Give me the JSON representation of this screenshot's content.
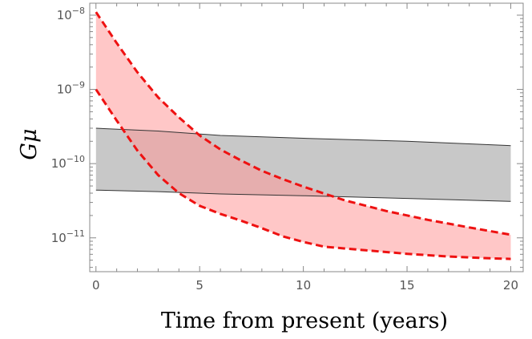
{
  "chart_data": {
    "type": "area",
    "xlabel": "Time from present (years)",
    "ylabel": "Gμ",
    "xlim": [
      -0.3,
      20.6
    ],
    "ylim": [
      3.5e-12,
      1.45e-08
    ],
    "yscale": "log",
    "grid": false,
    "legend": "none",
    "x_ticks": [
      0,
      5,
      10,
      15,
      20
    ],
    "x_tick_labels": [
      "0",
      "5",
      "10",
      "15",
      "20"
    ],
    "y_ticks": [
      1e-11,
      1e-10,
      1e-09,
      1e-08
    ],
    "y_tick_labels": [
      {
        "base": "10",
        "exp": "−11"
      },
      {
        "base": "10",
        "exp": "−10"
      },
      {
        "base": "10",
        "exp": "−9"
      },
      {
        "base": "10",
        "exp": "−8"
      }
    ],
    "series": [
      {
        "style": "band",
        "fill": "#c8c8c8",
        "stroke": "#333333",
        "upper": [
          [
            0,
            3e-10
          ],
          [
            3,
            2.75e-10
          ],
          [
            6,
            2.4e-10
          ],
          [
            10,
            2.2e-10
          ],
          [
            15,
            2e-10
          ],
          [
            20,
            1.75e-10
          ]
        ],
        "lower": [
          [
            0,
            4.4e-11
          ],
          [
            3,
            4.2e-11
          ],
          [
            6,
            3.9e-11
          ],
          [
            10,
            3.7e-11
          ],
          [
            15,
            3.4e-11
          ],
          [
            20,
            3.1e-11
          ]
        ]
      },
      {
        "style": "band",
        "fill": "#ff9999",
        "stroke": "#ee1111",
        "dashed": true,
        "upper": [
          [
            0,
            1.1e-08
          ],
          [
            1,
            4.2e-09
          ],
          [
            2,
            1.7e-09
          ],
          [
            3,
            7.8e-10
          ],
          [
            4,
            4.2e-10
          ],
          [
            5,
            2.4e-10
          ],
          [
            6,
            1.55e-10
          ],
          [
            7,
            1.1e-10
          ],
          [
            8,
            8e-11
          ],
          [
            9,
            6.2e-11
          ],
          [
            10,
            4.9e-11
          ],
          [
            12,
            3.2e-11
          ],
          [
            14,
            2.3e-11
          ],
          [
            16,
            1.75e-11
          ],
          [
            18,
            1.38e-11
          ],
          [
            20,
            1.1e-11
          ]
        ],
        "lower": [
          [
            0,
            1e-09
          ],
          [
            1,
            3.8e-10
          ],
          [
            2,
            1.5e-10
          ],
          [
            3,
            7e-11
          ],
          [
            4,
            4e-11
          ],
          [
            5,
            2.7e-11
          ],
          [
            6,
            2.1e-11
          ],
          [
            7,
            1.7e-11
          ],
          [
            8,
            1.35e-11
          ],
          [
            9,
            1.05e-11
          ],
          [
            10,
            8.8e-12
          ],
          [
            11,
            7.6e-12
          ],
          [
            13,
            6.8e-12
          ],
          [
            15,
            6.1e-12
          ],
          [
            17,
            5.6e-12
          ],
          [
            19,
            5.3e-12
          ],
          [
            20,
            5.2e-12
          ]
        ]
      }
    ]
  }
}
